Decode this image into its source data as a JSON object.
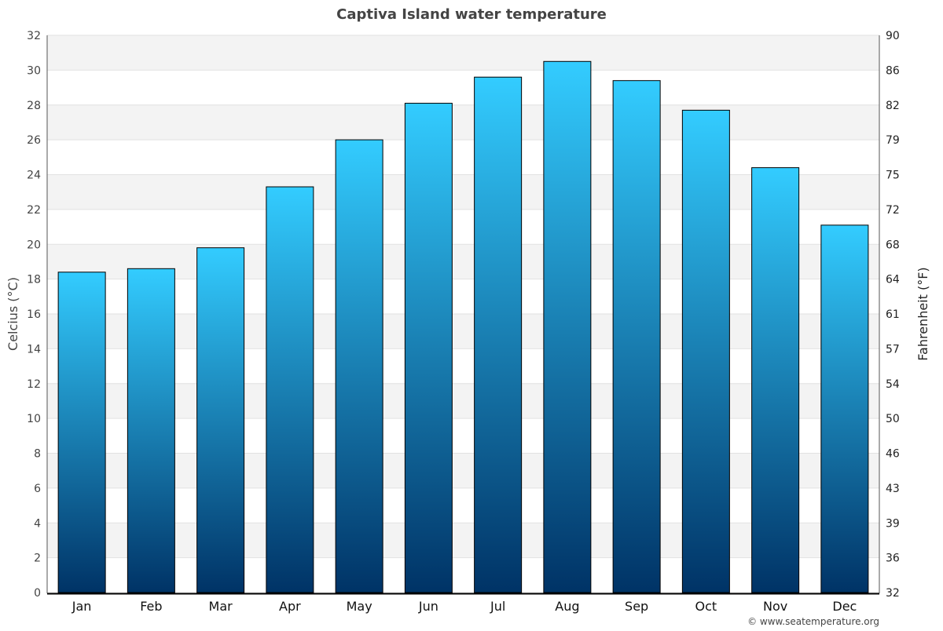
{
  "chart_data": {
    "type": "bar",
    "title": "Captiva Island water temperature",
    "categories": [
      "Jan",
      "Feb",
      "Mar",
      "Apr",
      "May",
      "Jun",
      "Jul",
      "Aug",
      "Sep",
      "Oct",
      "Nov",
      "Dec"
    ],
    "values": [
      18.4,
      18.6,
      19.8,
      23.3,
      26.0,
      28.1,
      29.6,
      30.5,
      29.4,
      27.7,
      24.4,
      21.1
    ],
    "ylabel": "Celcius (°C)",
    "ylabel_right": "Fahrenheit (°F)",
    "ylim": [
      0,
      32
    ],
    "yticks": [
      0,
      2,
      4,
      6,
      8,
      10,
      12,
      14,
      16,
      18,
      20,
      22,
      24,
      26,
      28,
      30,
      32
    ],
    "yticks_right": [
      "32",
      "36",
      "39",
      "43",
      "46",
      "50",
      "54",
      "57",
      "61",
      "64",
      "68",
      "72",
      "75",
      "79",
      "82",
      "86",
      "90"
    ],
    "grid": true,
    "bar_color_top": "#33ccff",
    "bar_color_bottom": "#003366",
    "credit": "© www.seatemperature.org"
  }
}
